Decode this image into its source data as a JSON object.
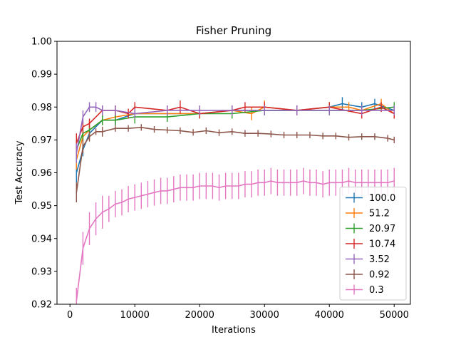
{
  "chart_data": {
    "type": "line",
    "title": "Fisher Pruning",
    "xlabel": "Iterations",
    "ylabel": "Test Accuracy",
    "xlim": [
      -2000,
      52500
    ],
    "ylim": [
      0.92,
      1.0
    ],
    "xticks": [
      0,
      10000,
      20000,
      30000,
      40000,
      50000
    ],
    "yticks": [
      0.92,
      0.93,
      0.94,
      0.95,
      0.96,
      0.97,
      0.98,
      0.99,
      1.0
    ],
    "xtick_labels": [
      "0",
      "10000",
      "20000",
      "30000",
      "40000",
      "50000"
    ],
    "ytick_labels": [
      "0.92",
      "0.93",
      "0.94",
      "0.95",
      "0.96",
      "0.97",
      "0.98",
      "0.99",
      "1.00"
    ],
    "grid": false,
    "legend_position": "lower right",
    "series": [
      {
        "name": "100.0",
        "color": "#1f77b4",
        "x": [
          1000,
          2000,
          3000,
          5000,
          7000,
          10000,
          15000,
          20000,
          25000,
          30000,
          35000,
          40000,
          42000,
          45000,
          47000,
          50000
        ],
        "y": [
          0.96,
          0.967,
          0.972,
          0.976,
          0.976,
          0.978,
          0.978,
          0.978,
          0.979,
          0.979,
          0.979,
          0.98,
          0.981,
          0.98,
          0.981,
          0.979
        ],
        "err": [
          0.003,
          0.002,
          0.0015,
          0.0015,
          0.0015,
          0.0015,
          0.0015,
          0.0015,
          0.0015,
          0.0015,
          0.0015,
          0.0015,
          0.002,
          0.0015,
          0.0015,
          0.0015
        ]
      },
      {
        "name": "51.2",
        "color": "#ff7f0e",
        "x": [
          1000,
          2000,
          3000,
          5000,
          7000,
          10000,
          15000,
          20000,
          25000,
          28000,
          30000,
          35000,
          40000,
          43000,
          45000,
          48000,
          50000
        ],
        "y": [
          0.964,
          0.971,
          0.973,
          0.976,
          0.977,
          0.978,
          0.978,
          0.978,
          0.979,
          0.978,
          0.98,
          0.979,
          0.98,
          0.98,
          0.979,
          0.981,
          0.978
        ],
        "err": [
          0.003,
          0.002,
          0.003,
          0.0015,
          0.0015,
          0.0015,
          0.0015,
          0.0015,
          0.0015,
          0.002,
          0.002,
          0.0015,
          0.0015,
          0.0015,
          0.0015,
          0.0015,
          0.0015
        ]
      },
      {
        "name": "20.97",
        "color": "#2ca02c",
        "x": [
          1000,
          2000,
          3000,
          5000,
          7000,
          10000,
          15000,
          20000,
          25000,
          30000,
          35000,
          40000,
          45000,
          50000
        ],
        "y": [
          0.967,
          0.972,
          0.973,
          0.976,
          0.976,
          0.977,
          0.977,
          0.978,
          0.978,
          0.979,
          0.979,
          0.979,
          0.979,
          0.98
        ],
        "err": [
          0.003,
          0.002,
          0.0015,
          0.0015,
          0.0015,
          0.002,
          0.0015,
          0.0015,
          0.0015,
          0.0015,
          0.0015,
          0.0015,
          0.0015,
          0.0015
        ]
      },
      {
        "name": "10.74",
        "color": "#d62728",
        "x": [
          1000,
          2000,
          3000,
          5000,
          7000,
          9000,
          10000,
          15000,
          17000,
          20000,
          25000,
          27000,
          30000,
          35000,
          40000,
          45000,
          48000,
          50000
        ],
        "y": [
          0.969,
          0.974,
          0.975,
          0.979,
          0.979,
          0.978,
          0.98,
          0.979,
          0.98,
          0.978,
          0.979,
          0.98,
          0.98,
          0.979,
          0.98,
          0.978,
          0.98,
          0.978
        ],
        "err": [
          0.003,
          0.002,
          0.0015,
          0.0015,
          0.0015,
          0.0015,
          0.0015,
          0.0015,
          0.002,
          0.0015,
          0.0015,
          0.0015,
          0.0015,
          0.0015,
          0.0015,
          0.0015,
          0.0015,
          0.0015
        ]
      },
      {
        "name": "3.52",
        "color": "#9467bd",
        "x": [
          1000,
          2000,
          3000,
          4000,
          5000,
          7000,
          10000,
          15000,
          20000,
          25000,
          30000,
          35000,
          40000,
          45000,
          50000
        ],
        "y": [
          0.966,
          0.977,
          0.98,
          0.98,
          0.979,
          0.979,
          0.978,
          0.979,
          0.979,
          0.979,
          0.979,
          0.979,
          0.979,
          0.979,
          0.979
        ],
        "err": [
          0.003,
          0.002,
          0.0015,
          0.0015,
          0.0015,
          0.0015,
          0.0015,
          0.0015,
          0.0015,
          0.0015,
          0.0015,
          0.0015,
          0.0015,
          0.0015,
          0.0015
        ]
      },
      {
        "name": "0.92",
        "color": "#8c564b",
        "x": [
          1000,
          2000,
          3000,
          4000,
          5000,
          7000,
          9000,
          11000,
          13000,
          15000,
          17000,
          19000,
          21000,
          23000,
          25000,
          27000,
          29000,
          31000,
          33000,
          35000,
          37000,
          39000,
          41000,
          43000,
          45000,
          47000,
          49000,
          50000
        ],
        "y": [
          0.954,
          0.968,
          0.971,
          0.9725,
          0.9725,
          0.9735,
          0.9735,
          0.9738,
          0.9732,
          0.973,
          0.9728,
          0.9723,
          0.9728,
          0.9722,
          0.9725,
          0.972,
          0.972,
          0.9718,
          0.9715,
          0.9715,
          0.9715,
          0.9712,
          0.9712,
          0.9708,
          0.971,
          0.971,
          0.9705,
          0.97
        ],
        "err": [
          0.003,
          0.002,
          0.0015,
          0.001,
          0.0015,
          0.001,
          0.001,
          0.001,
          0.001,
          0.001,
          0.001,
          0.001,
          0.001,
          0.001,
          0.001,
          0.001,
          0.001,
          0.001,
          0.001,
          0.001,
          0.001,
          0.001,
          0.001,
          0.001,
          0.001,
          0.001,
          0.001,
          0.001
        ]
      },
      {
        "name": "0.3",
        "color": "#e377c2",
        "x": [
          1000,
          2000,
          3000,
          4000,
          5000,
          6000,
          7000,
          8000,
          9000,
          10000,
          11000,
          12000,
          13000,
          14000,
          15000,
          16000,
          17000,
          18000,
          19000,
          20000,
          21000,
          22000,
          23000,
          24000,
          25000,
          26000,
          27000,
          28000,
          29000,
          30000,
          31000,
          32000,
          33000,
          34000,
          35000,
          36000,
          37000,
          38000,
          39000,
          40000,
          41000,
          42000,
          43000,
          44000,
          45000,
          46000,
          47000,
          48000,
          49000,
          50000
        ],
        "y": [
          0.921,
          0.937,
          0.943,
          0.946,
          0.948,
          0.949,
          0.9505,
          0.951,
          0.952,
          0.9525,
          0.953,
          0.9535,
          0.954,
          0.9545,
          0.9545,
          0.955,
          0.9555,
          0.9555,
          0.9555,
          0.956,
          0.956,
          0.956,
          0.9555,
          0.956,
          0.956,
          0.956,
          0.9565,
          0.9565,
          0.957,
          0.957,
          0.9575,
          0.957,
          0.957,
          0.957,
          0.957,
          0.9575,
          0.957,
          0.957,
          0.9565,
          0.957,
          0.957,
          0.957,
          0.9575,
          0.957,
          0.957,
          0.957,
          0.957,
          0.957,
          0.957,
          0.9575
        ],
        "err": [
          0.004,
          0.005,
          0.005,
          0.005,
          0.005,
          0.004,
          0.004,
          0.004,
          0.004,
          0.004,
          0.004,
          0.004,
          0.004,
          0.004,
          0.004,
          0.004,
          0.004,
          0.004,
          0.004,
          0.004,
          0.004,
          0.004,
          0.004,
          0.004,
          0.004,
          0.004,
          0.004,
          0.004,
          0.004,
          0.004,
          0.004,
          0.004,
          0.004,
          0.004,
          0.004,
          0.004,
          0.004,
          0.004,
          0.004,
          0.004,
          0.004,
          0.004,
          0.004,
          0.004,
          0.004,
          0.004,
          0.004,
          0.004,
          0.004,
          0.004
        ]
      }
    ]
  }
}
